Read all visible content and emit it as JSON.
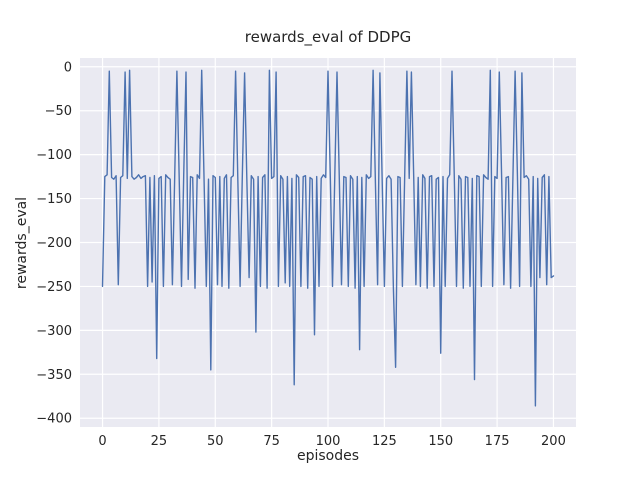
{
  "figure": {
    "title": "rewards_eval of DDPG",
    "xlabel": "episodes",
    "ylabel": "rewards_eval"
  },
  "chart_data": {
    "type": "line",
    "title": "rewards_eval of DDPG",
    "xlabel": "episodes",
    "ylabel": "rewards_eval",
    "xlim": [
      -10,
      210
    ],
    "ylim": [
      -410,
      10
    ],
    "x_tick_values": [
      0,
      25,
      50,
      75,
      100,
      125,
      150,
      175,
      200
    ],
    "x_tick_labels": [
      "0",
      "25",
      "50",
      "75",
      "100",
      "125",
      "150",
      "175",
      "200"
    ],
    "y_tick_values": [
      0,
      -50,
      -100,
      -150,
      -200,
      -250,
      -300,
      -350,
      -400
    ],
    "y_tick_labels": [
      "0",
      "−50",
      "−100",
      "−150",
      "−200",
      "−250",
      "−300",
      "−350",
      "−400"
    ],
    "grid": true,
    "legend": false,
    "line_color": "#4c72b0",
    "background_color": "#eaeaf2",
    "grid_color": "#ffffff",
    "series": [
      {
        "name": "rewards_eval",
        "x_start": 0,
        "x_step": 1,
        "values": [
          -250,
          -125,
          -123,
          -5,
          -126,
          -128,
          -124,
          -248,
          -126,
          -124,
          -6,
          -127,
          -4,
          -125,
          -128,
          -126,
          -123,
          -127,
          -125,
          -124,
          -250,
          -126,
          -245,
          -124,
          -332,
          -127,
          -125,
          -250,
          -123,
          -126,
          -128,
          -248,
          -125,
          -5,
          -127,
          -250,
          -124,
          -6,
          -242,
          -125,
          -126,
          -252,
          -123,
          -127,
          -4,
          -125,
          -250,
          -128,
          -345,
          -124,
          -126,
          -248,
          -125,
          -250,
          -127,
          -123,
          -252,
          -126,
          -124,
          -5,
          -127,
          -250,
          -125,
          -7,
          -126,
          -240,
          -124,
          -128,
          -302,
          -125,
          -250,
          -126,
          -123,
          -252,
          -4,
          -127,
          -125,
          -6,
          -250,
          -124,
          -128,
          -246,
          -125,
          -250,
          -127,
          -362,
          -123,
          -126,
          -250,
          -125,
          -124,
          -252,
          -126,
          -128,
          -305,
          -125,
          -250,
          -127,
          -123,
          -126,
          -5,
          -125,
          -250,
          -124,
          -6,
          -127,
          -248,
          -125,
          -126,
          -250,
          -124,
          -128,
          -252,
          -125,
          -322,
          -126,
          -250,
          -123,
          -127,
          -125,
          -4,
          -126,
          -248,
          -7,
          -125,
          -250,
          -127,
          -124,
          -128,
          -252,
          -342,
          -125,
          -126,
          -250,
          -124,
          -5,
          -127,
          -6,
          -125,
          -248,
          -126,
          -250,
          -123,
          -127,
          -252,
          -125,
          -124,
          -250,
          -128,
          -126,
          -326,
          -125,
          -250,
          -127,
          -123,
          -5,
          -126,
          -250,
          -124,
          -128,
          -252,
          -125,
          -126,
          -250,
          -127,
          -356,
          -124,
          -125,
          -250,
          -123,
          -126,
          -128,
          -4,
          -250,
          -125,
          -127,
          -6,
          -124,
          -248,
          -126,
          -125,
          -252,
          -127,
          -5,
          -123,
          -250,
          -7,
          -126,
          -124,
          -128,
          -250,
          -125,
          -386,
          -127,
          -240,
          -126,
          -123,
          -248,
          -125,
          -240,
          -238
        ]
      }
    ]
  }
}
